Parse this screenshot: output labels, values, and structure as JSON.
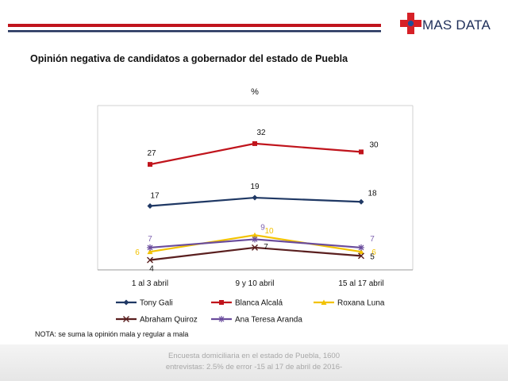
{
  "header": {
    "logo_text": "MAS DATA",
    "colors": {
      "red_bar": "#c0141c",
      "navy_bar": "#1f2f5a",
      "cross_red": "#d62027",
      "cross_blue": "#1f4e9a"
    }
  },
  "title": "Opinión  negativa de candidatos  a gobernador  del estado de Puebla",
  "note": "NOTA: se suma la opinión mala y regular a mala",
  "footer": {
    "line1": "Encuesta domiciliaria en el estado de Puebla, 1600",
    "line2": "entrevistas: 2.5% de error  -15 al 17 de abril de 2016-"
  },
  "chart_data": {
    "type": "line",
    "ylabel": "%",
    "categories": [
      "1 al 3 abril",
      "9 y 10 abril",
      "15 al 17 abril"
    ],
    "ylim": [
      0,
      35
    ],
    "grid": false,
    "legend_position": "bottom",
    "series": [
      {
        "name": "Tony Gali",
        "values": [
          17,
          19,
          18
        ],
        "color": "#1f3864",
        "marker": "diamond",
        "label_color": "#111111"
      },
      {
        "name": "Blanca Alcalá",
        "values": [
          27,
          32,
          30
        ],
        "color": "#c0141c",
        "marker": "square",
        "label_color": "#111111"
      },
      {
        "name": "Roxana Luna",
        "values": [
          6,
          10,
          6
        ],
        "color": "#f2c200",
        "marker": "triangle",
        "label_color": "#f2c200"
      },
      {
        "name": "Abraham Quiroz",
        "values": [
          4,
          7,
          5
        ],
        "color": "#5a1f1f",
        "marker": "x",
        "label_color": "#111111"
      },
      {
        "name": "Ana Teresa Aranda",
        "values": [
          7,
          9,
          7
        ],
        "color": "#6a4c9c",
        "marker": "star",
        "label_color": "#7f63b0"
      }
    ]
  }
}
